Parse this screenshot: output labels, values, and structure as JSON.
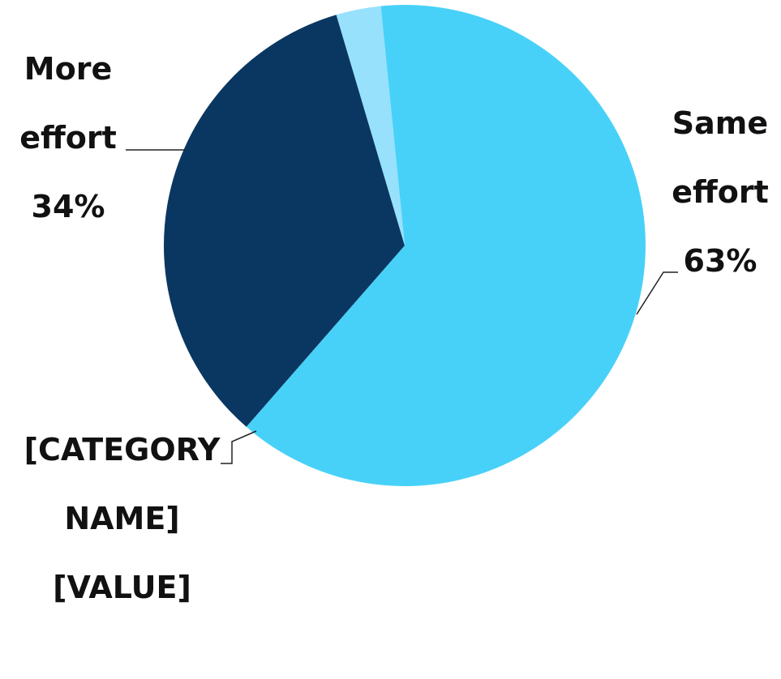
{
  "chart_data": {
    "type": "pie",
    "categories": [
      "Same effort",
      "More effort",
      "[CATEGORY NAME]"
    ],
    "values": [
      63,
      34,
      3
    ],
    "value_labels": [
      "63%",
      "34%",
      "[VALUE]"
    ],
    "colors": [
      "#48d1f8",
      "#0a3761",
      "#97e1fc"
    ]
  }
}
